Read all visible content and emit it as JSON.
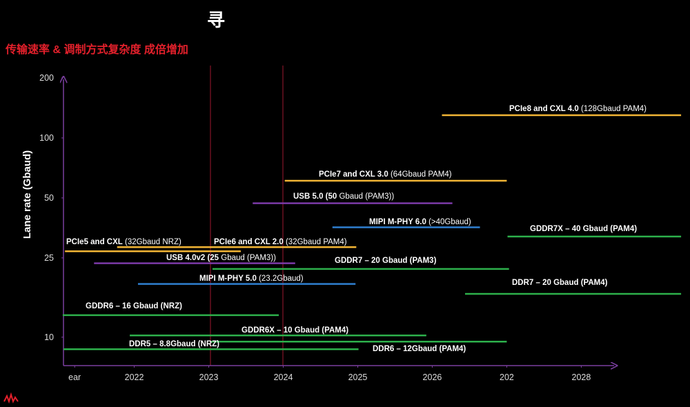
{
  "chart_data": {
    "type": "range",
    "title": "寻",
    "subtitle": "传输速率 & 调制方式复杂度 成倍增加",
    "y_label": "Lane rate (Gbaud)",
    "log_y": true,
    "ylim": [
      7.2,
      200
    ],
    "yticks": [
      10,
      25,
      50,
      100,
      200
    ],
    "xlim": [
      2021.05,
      2028.45
    ],
    "xticks": [
      {
        "value": 2021.2,
        "label": "ear"
      },
      2022,
      2023,
      2024,
      2025,
      2026,
      {
        "value": 2027,
        "label": "202"
      },
      2028
    ],
    "series": [
      {
        "name": "PCIe8 and CXL 4.0",
        "detail": " (128Gbaud PAM4)",
        "color": "#f2b535",
        "value": 130,
        "x": [
          2026.13,
          2029.34
        ]
      },
      {
        "name": "PCIe7 and CXL 3.0",
        "detail": " (64Gbaud PAM4)",
        "color": "#f2b535",
        "value": 61,
        "x": [
          2024.02,
          2027.0
        ]
      },
      {
        "name": "USB 5.0 (50",
        "detail": " Gbaud (PAM3))",
        "color": "#7c3aa8",
        "value": 47,
        "x": [
          2023.59,
          2026.27
        ]
      },
      {
        "name": "MIPI M-PHY 6.0",
        "detail": " (>40Gbaud)",
        "color": "#2f7fd0",
        "value": 35.6,
        "x": [
          2024.66,
          2026.64
        ]
      },
      {
        "name": "GDDR7X – 40 Gbaud (PAM4)",
        "detail": "",
        "color": "#2db04b",
        "value": 32,
        "x": [
          2027.01,
          2029.34
        ]
      },
      {
        "name": "PCIe5 and CXL",
        "detail": " (32Gbaud NRZ)",
        "color": "#f2b535",
        "value": 27,
        "x": [
          2021.07,
          2023.43
        ]
      },
      {
        "name": "PCIe6 and CXL 2.0",
        "detail": " (32Gbaud PAM4)",
        "color": "#f2b535",
        "value": 28.3,
        "x": [
          2021.77,
          2024.98
        ]
      },
      {
        "name": "USB 4.0v2 (25",
        "detail": " Gbaud (PAM3))",
        "color": "#7c3aa8",
        "value": 23.5,
        "x": [
          2021.46,
          2024.16
        ]
      },
      {
        "name": "GDDR7 – 20 Gbaud (PAM3)",
        "detail": "",
        "color": "#2db04b",
        "value": 22,
        "x": [
          2023.05,
          2027.03
        ]
      },
      {
        "name": "MIPI M-PHY 5.0",
        "detail": " (23.2Gbaud)",
        "color": "#2f7fd0",
        "value": 18.5,
        "x": [
          2022.05,
          2024.97
        ]
      },
      {
        "name": "DDR7 – 20 Gbaud (PAM4)",
        "detail": "",
        "color": "#2db04b",
        "value": 16.5,
        "x": [
          2026.44,
          2029.34
        ]
      },
      {
        "name": "GDDR6 – 16 Gbaud (NRZ)",
        "detail": "",
        "color": "#2db04b",
        "value": 12.9,
        "x": [
          2021.04,
          2023.94
        ]
      },
      {
        "name": "GDDR6X – 10 Gbaud (PAM4)",
        "detail": "",
        "color": "#2db04b",
        "value": 10.2,
        "x": [
          2021.94,
          2025.92
        ]
      },
      {
        "name": "DDR6 – 12Gbaud (PAM4)",
        "detail": "",
        "color": "#2db04b",
        "value": 9.5,
        "x": [
          2023.02,
          2027.0
        ]
      },
      {
        "name": "DDR5 – 8.8Gbaud (NRZ)",
        "detail": "",
        "color": "#2db04b",
        "value": 8.7,
        "x": [
          2021.05,
          2025.01
        ]
      }
    ]
  }
}
